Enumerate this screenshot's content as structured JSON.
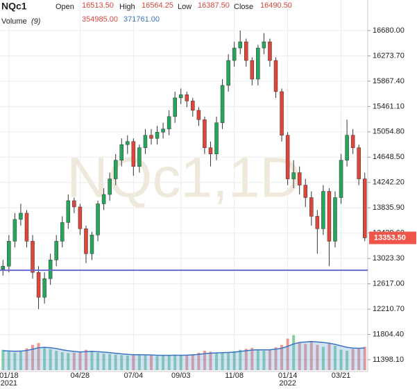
{
  "chart_data": {
    "type": "candlestick",
    "symbol": "NQc1",
    "watermark": "NQc1,1D",
    "header": {
      "open_label": "Open",
      "open": "16513.50",
      "high_label": "High",
      "high": "16564.25",
      "low_label": "Low",
      "low": "16387.50",
      "close_label": "Close",
      "close": "16490.50",
      "volume_label": "Volume",
      "volume_period": "(9)",
      "volume_value": "354985.00",
      "volume_ma_value": "371761.00"
    },
    "categories": [
      null,
      "01/18",
      null,
      null,
      null,
      null,
      null,
      null,
      null,
      null,
      null,
      null,
      null,
      "04/28",
      null,
      null,
      null,
      null,
      null,
      null,
      null,
      null,
      "07/04",
      null,
      null,
      null,
      null,
      null,
      null,
      null,
      "09/03",
      null,
      null,
      null,
      null,
      null,
      null,
      null,
      null,
      "11/08",
      null,
      null,
      null,
      null,
      null,
      null,
      null,
      null,
      "01/14",
      null,
      null,
      null,
      null,
      null,
      null,
      null,
      null,
      "03/21",
      null,
      null,
      null,
      null
    ],
    "category_years": [
      null,
      "2021",
      null,
      null,
      null,
      null,
      null,
      null,
      null,
      null,
      null,
      null,
      null,
      null,
      null,
      null,
      null,
      null,
      null,
      null,
      null,
      null,
      null,
      null,
      null,
      null,
      null,
      null,
      null,
      null,
      null,
      null,
      null,
      null,
      null,
      null,
      null,
      null,
      null,
      null,
      null,
      null,
      null,
      null,
      null,
      null,
      null,
      null,
      "2022",
      null,
      null,
      null,
      null,
      null,
      null,
      null,
      null,
      null,
      null,
      null,
      null,
      null
    ],
    "open": [
      12850,
      12900,
      13300,
      13650,
      13750,
      13300,
      12800,
      12400,
      12700,
      13000,
      13300,
      13600,
      13950,
      13850,
      13500,
      13100,
      13400,
      13900,
      14050,
      14300,
      14600,
      14850,
      14900,
      14500,
      14800,
      15000,
      14950,
      15050,
      15100,
      15300,
      15600,
      15650,
      15550,
      15400,
      15250,
      14800,
      14700,
      15200,
      15800,
      16200,
      16400,
      16500,
      16200,
      15900,
      16400,
      16500,
      16200,
      15700,
      15000,
      14300,
      14400,
      14200,
      14000,
      13700,
      13500,
      14100,
      13300,
      14000,
      14600,
      15000,
      14800,
      14300
    ],
    "high": [
      13000,
      13400,
      13750,
      13900,
      13800,
      13400,
      12900,
      12800,
      13100,
      13400,
      13700,
      14050,
      14000,
      13900,
      13550,
      13450,
      13950,
      14150,
      14400,
      14700,
      14950,
      15000,
      14950,
      14850,
      15100,
      15100,
      15150,
      15200,
      15400,
      15700,
      15750,
      15700,
      15600,
      15450,
      15300,
      14900,
      15300,
      15900,
      16300,
      16500,
      16680,
      16550,
      16250,
      16450,
      16640,
      16550,
      16250,
      15750,
      15050,
      14600,
      14500,
      14300,
      14100,
      13800,
      14200,
      14150,
      14100,
      14700,
      15250,
      15100,
      14850,
      14400
    ],
    "low": [
      12750,
      12800,
      13200,
      13550,
      13200,
      12700,
      12210,
      12300,
      12600,
      12900,
      13200,
      13500,
      13750,
      13400,
      12950,
      13000,
      13300,
      13800,
      13950,
      14200,
      14500,
      14700,
      14350,
      14400,
      14700,
      14850,
      14850,
      14950,
      15000,
      15200,
      15500,
      15450,
      15300,
      15150,
      14700,
      14500,
      14600,
      15100,
      15700,
      16100,
      16300,
      16100,
      15800,
      15800,
      16300,
      16100,
      15600,
      14900,
      14200,
      14150,
      14050,
      13850,
      13550,
      13100,
      13400,
      12900,
      13200,
      13900,
      14500,
      14700,
      14200,
      13300
    ],
    "close": [
      12900,
      13300,
      13650,
      13750,
      13300,
      12800,
      12400,
      12700,
      13000,
      13300,
      13600,
      13950,
      13850,
      13500,
      13100,
      13400,
      13900,
      14050,
      14300,
      14600,
      14850,
      14900,
      14500,
      14800,
      15000,
      14950,
      15050,
      15100,
      15300,
      15600,
      15650,
      15550,
      15400,
      15250,
      14800,
      14700,
      15200,
      15800,
      16200,
      16400,
      16500,
      16200,
      15900,
      16400,
      16500,
      16200,
      15700,
      15000,
      14300,
      14400,
      14200,
      14000,
      13700,
      13500,
      14100,
      13300,
      14000,
      14600,
      15000,
      14800,
      14300,
      13353.5
    ],
    "up_color": "#26a65b",
    "down_color": "#e0453a",
    "volume": [
      420000,
      380000,
      360000,
      400000,
      450000,
      520000,
      560000,
      480000,
      430000,
      400000,
      370000,
      350000,
      360000,
      380000,
      420000,
      400000,
      360000,
      340000,
      330000,
      320000,
      310000,
      300000,
      320000,
      330000,
      310000,
      300000,
      290000,
      300000,
      310000,
      320000,
      300000,
      310000,
      330000,
      360000,
      400000,
      380000,
      350000,
      360000,
      370000,
      390000,
      420000,
      440000,
      460000,
      410000,
      400000,
      430000,
      470000,
      520000,
      650000,
      720000,
      560000,
      540000,
      600000,
      520000,
      480000,
      560000,
      500000,
      420000,
      400000,
      440000,
      460000,
      480000
    ],
    "volume_ma": [
      400000,
      395000,
      390000,
      392000,
      405000,
      430000,
      460000,
      470000,
      460000,
      445000,
      420000,
      400000,
      385000,
      375000,
      380000,
      385000,
      380000,
      372000,
      360000,
      348000,
      336000,
      325000,
      318000,
      318000,
      316000,
      312000,
      308000,
      306000,
      306000,
      308000,
      308000,
      309000,
      315000,
      325000,
      340000,
      350000,
      355000,
      360000,
      365000,
      372000,
      385000,
      400000,
      415000,
      420000,
      418000,
      420000,
      432000,
      450000,
      490000,
      540000,
      570000,
      580000,
      590000,
      580000,
      570000,
      555000,
      530000,
      500000,
      470000,
      455000,
      450000,
      455000
    ],
    "volume_color": "#7eaee0",
    "volume_ma_color": "#3a74c4",
    "volume_ylim": [
      0,
      900000
    ],
    "ylim": [
      11209,
      17170
    ],
    "yticks": [
      {
        "value": 16680,
        "label": "16680.00"
      },
      {
        "value": 16273.7,
        "label": "16273.70"
      },
      {
        "value": 15867.4,
        "label": "15867.40"
      },
      {
        "value": 15461.1,
        "label": "15461.10"
      },
      {
        "value": 15054.8,
        "label": "15054.80"
      },
      {
        "value": 14648.5,
        "label": "14648.50"
      },
      {
        "value": 14242.2,
        "label": "14242.20"
      },
      {
        "value": 13835.9,
        "label": "13835.90"
      },
      {
        "value": 13429.6,
        "label": "13429.60"
      },
      {
        "value": 13023.3,
        "label": "13023.30"
      },
      {
        "value": 12617,
        "label": "12617.00"
      },
      {
        "value": 12210.7,
        "label": "12210.70"
      },
      {
        "value": 11804.4,
        "label": "11804.40"
      },
      {
        "value": 11398.1,
        "label": "11398.10"
      }
    ],
    "last_price": 13353.5,
    "last_price_label": "13353.50",
    "last_price_color": "#f0554a",
    "hline": 12835,
    "hline_color": "#6a6ad0",
    "grid": true
  }
}
